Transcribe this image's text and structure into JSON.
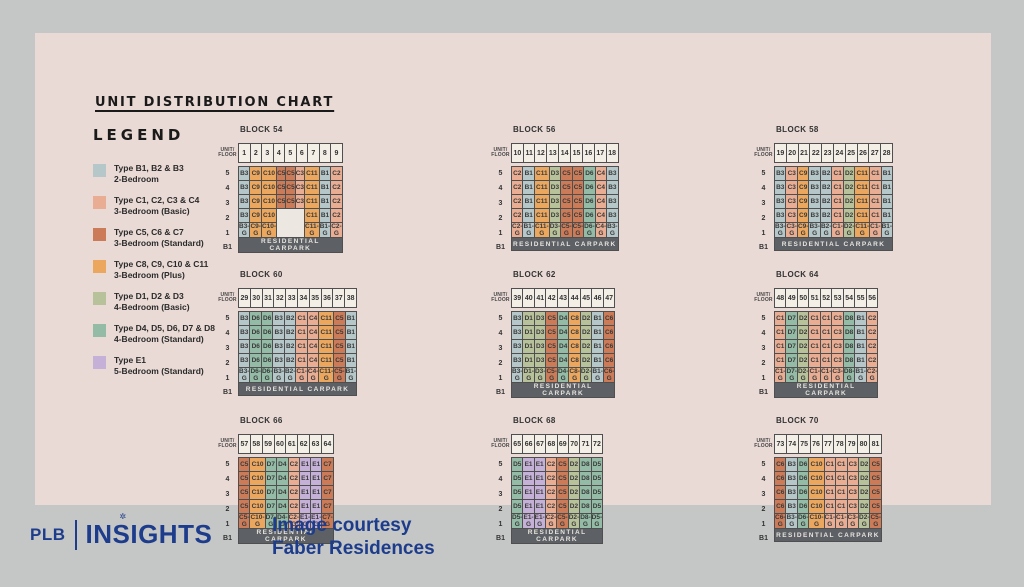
{
  "title": "UNIT DISTRIBUTION CHART",
  "legend": {
    "heading": "LEGEND",
    "items": [
      {
        "line1": "Type B1, B2 & B3",
        "line2": "2-Bedroom",
        "color_key": "type_b"
      },
      {
        "line1": "Type C1, C2, C3 & C4",
        "line2": "3-Bedroom (Basic)",
        "color_key": "type_c_basic"
      },
      {
        "line1": "Type C5, C6 & C7",
        "line2": "3-Bedroom (Standard)",
        "color_key": "type_c_standard"
      },
      {
        "line1": "Type C8, C9, C10 & C11",
        "line2": "3-Bedroom (Plus)",
        "color_key": "type_c_plus"
      },
      {
        "line1": "Type D1, D2 & D3",
        "line2": "4-Bedroom (Basic)",
        "color_key": "type_d_basic"
      },
      {
        "line1": "Type D4, D5, D6, D7 & D8",
        "line2": "4-Bedroom (Standard)",
        "color_key": "type_d_standard"
      },
      {
        "line1": "Type E1",
        "line2": "5-Bedroom (Standard)",
        "color_key": "type_e"
      }
    ]
  },
  "colors": {
    "type_b": "#b6c7ca",
    "type_c_basic": "#e8ad93",
    "type_c_standard": "#cc7b58",
    "type_c_plus": "#eca75f",
    "type_d_basic": "#b8c29a",
    "type_d_standard": "#93bba5",
    "type_e": "#c5b1d7",
    "panel_bg": "#e9dad5",
    "page_bg": "#c5c6c6",
    "stack_header_bg": "#f3eee6",
    "carpark_bg": "#5d6166",
    "brand_navy": "#1d3d8c"
  },
  "labels": {
    "unit_floor_line1": "UNIT/",
    "unit_floor_line2": "FLOOR",
    "carpark": "RESIDENTIAL CARPARK",
    "basement": "B1"
  },
  "footer": {
    "logo_plb": "PLB",
    "logo_insights": "INSIGHTS",
    "credit_line1": "Image courtesy",
    "credit_line2": "Faber Residences"
  },
  "chart_data": {
    "type": "table",
    "title": "UNIT DISTRIBUTION CHART",
    "floors": [
      "5",
      "4",
      "3",
      "2",
      "1"
    ],
    "basement_row_label": "B1",
    "carpark_label": "RESIDENTIAL CARPARK",
    "unit_type_groups": {
      "B1-B3": "2-Bedroom",
      "C1-C4": "3-Bedroom (Basic)",
      "C5-C7": "3-Bedroom (Standard)",
      "C8-C11": "3-Bedroom (Plus)",
      "D1-D3": "4-Bedroom (Basic)",
      "D4-D8": "4-Bedroom (Standard)",
      "E1": "5-Bedroom (Standard)"
    },
    "blocks": [
      {
        "name": "BLOCK 54",
        "stacks": [
          "1",
          "2",
          "3",
          "4",
          "5",
          "6",
          "7",
          "8",
          "9"
        ],
        "rows": [
          {
            "floor": "5",
            "cells": [
              "B3",
              "C9",
              "C10",
              "C5",
              "C5",
              "C3",
              "C11",
              "B1",
              "C2"
            ]
          },
          {
            "floor": "4",
            "cells": [
              "B3",
              "C9",
              "C10",
              "C5",
              "C5",
              "C3",
              "C11",
              "B1",
              "C2"
            ]
          },
          {
            "floor": "3",
            "cells": [
              "B3",
              "C9",
              "C10",
              "C5",
              "C5",
              "C3",
              "C11",
              "B1",
              "C2"
            ]
          },
          {
            "floor": "2",
            "cells": [
              "B3",
              "C9",
              "C10",
              null,
              null,
              null,
              "C11",
              "B1",
              "C2"
            ]
          },
          {
            "floor": "1",
            "cells": [
              "B3-G",
              "C9-G",
              "C10-G",
              null,
              null,
              null,
              "C11-G",
              "B1-G",
              "C2-G"
            ]
          }
        ]
      },
      {
        "name": "BLOCK 56",
        "stacks": [
          "10",
          "11",
          "12",
          "13",
          "14",
          "15",
          "16",
          "17",
          "18"
        ],
        "rows": [
          {
            "floor": "5",
            "cells": [
              "C2",
              "B1",
              "C11",
              "D3",
              "C5",
              "C5",
              "D6",
              "C4",
              "B3"
            ]
          },
          {
            "floor": "4",
            "cells": [
              "C2",
              "B1",
              "C11",
              "D3",
              "C5",
              "C5",
              "D6",
              "C4",
              "B3"
            ]
          },
          {
            "floor": "3",
            "cells": [
              "C2",
              "B1",
              "C11",
              "D3",
              "C5",
              "C5",
              "D6",
              "C4",
              "B3"
            ]
          },
          {
            "floor": "2",
            "cells": [
              "C2",
              "B1",
              "C11",
              "D3",
              "C5",
              "C5",
              "D6",
              "C4",
              "B3"
            ]
          },
          {
            "floor": "1",
            "cells": [
              "C2-G",
              "B1-G",
              "C11-G",
              "D3-G",
              "C5-G",
              "C5-G",
              "D6-G",
              "C4-G",
              "B3-G"
            ]
          }
        ]
      },
      {
        "name": "BLOCK 58",
        "stacks": [
          "19",
          "20",
          "21",
          "22",
          "23",
          "24",
          "25",
          "26",
          "27",
          "28"
        ],
        "rows": [
          {
            "floor": "5",
            "cells": [
              "B3",
              "C3",
              "C9",
              "B3",
              "B2",
              "C1",
              "D2",
              "C11",
              "C1",
              "B1"
            ]
          },
          {
            "floor": "4",
            "cells": [
              "B3",
              "C3",
              "C9",
              "B3",
              "B2",
              "C1",
              "D2",
              "C11",
              "C1",
              "B1"
            ]
          },
          {
            "floor": "3",
            "cells": [
              "B3",
              "C3",
              "C9",
              "B3",
              "B2",
              "C1",
              "D2",
              "C11",
              "C1",
              "B1"
            ]
          },
          {
            "floor": "2",
            "cells": [
              "B3",
              "C3",
              "C9",
              "B3",
              "B2",
              "C1",
              "D2",
              "C11",
              "C1",
              "B1"
            ]
          },
          {
            "floor": "1",
            "cells": [
              "B3-G",
              "C3-G",
              "C9-G",
              "B3-G",
              "B2-G",
              "C1-G",
              "D2-G",
              "C11-G",
              "C1-G",
              "B1-G"
            ]
          }
        ]
      },
      {
        "name": "BLOCK 60",
        "stacks": [
          "29",
          "30",
          "31",
          "32",
          "33",
          "34",
          "35",
          "36",
          "37",
          "38"
        ],
        "rows": [
          {
            "floor": "5",
            "cells": [
              "B3",
              "D6",
              "D6",
              "B3",
              "B2",
              "C1",
              "C4",
              "C11",
              "C5",
              "B1"
            ]
          },
          {
            "floor": "4",
            "cells": [
              "B3",
              "D6",
              "D6",
              "B3",
              "B2",
              "C1",
              "C4",
              "C11",
              "C5",
              "B1"
            ]
          },
          {
            "floor": "3",
            "cells": [
              "B3",
              "D6",
              "D6",
              "B3",
              "B2",
              "C1",
              "C4",
              "C11",
              "C5",
              "B1"
            ]
          },
          {
            "floor": "2",
            "cells": [
              "B3",
              "D6",
              "D6",
              "B3",
              "B2",
              "C1",
              "C4",
              "C11",
              "C5",
              "B1"
            ]
          },
          {
            "floor": "1",
            "cells": [
              "B3-G",
              "D6-G",
              "D6-G",
              "B3-G",
              "B2-G",
              "C1-G",
              "C4-G",
              "C11-G",
              "C5-G",
              "B1-G"
            ]
          }
        ]
      },
      {
        "name": "BLOCK 62",
        "stacks": [
          "39",
          "40",
          "41",
          "42",
          "43",
          "44",
          "45",
          "46",
          "47"
        ],
        "rows": [
          {
            "floor": "5",
            "cells": [
              "B3",
              "D1",
              "D3",
              "C5",
              "D4",
              "C8",
              "D2",
              "B1",
              "C6"
            ]
          },
          {
            "floor": "4",
            "cells": [
              "B3",
              "D1",
              "D3",
              "C5",
              "D4",
              "C8",
              "D2",
              "B1",
              "C6"
            ]
          },
          {
            "floor": "3",
            "cells": [
              "B3",
              "D1",
              "D3",
              "C5",
              "D4",
              "C8",
              "D2",
              "B1",
              "C6"
            ]
          },
          {
            "floor": "2",
            "cells": [
              "B3",
              "D1",
              "D3",
              "C5",
              "D4",
              "C8",
              "D2",
              "B1",
              "C6"
            ]
          },
          {
            "floor": "1",
            "cells": [
              "B3-G",
              "D1-G",
              "D3-G",
              "C5-G",
              "D4-G",
              "C8-G",
              "D2-G",
              "B1-G",
              "C6-G"
            ]
          }
        ]
      },
      {
        "name": "BLOCK 64",
        "stacks": [
          "48",
          "49",
          "50",
          "51",
          "52",
          "53",
          "54",
          "55",
          "56"
        ],
        "rows": [
          {
            "floor": "5",
            "cells": [
              "C1",
              "D7",
              "D2",
              "C1",
              "C1",
              "C3",
              "D8",
              "B1",
              "C2"
            ]
          },
          {
            "floor": "4",
            "cells": [
              "C1",
              "D7",
              "D2",
              "C1",
              "C1",
              "C3",
              "D8",
              "B1",
              "C2"
            ]
          },
          {
            "floor": "3",
            "cells": [
              "C1",
              "D7",
              "D2",
              "C1",
              "C1",
              "C3",
              "D8",
              "B1",
              "C2"
            ]
          },
          {
            "floor": "2",
            "cells": [
              "C1",
              "D7",
              "D2",
              "C1",
              "C1",
              "C3",
              "D8",
              "B1",
              "C2"
            ]
          },
          {
            "floor": "1",
            "cells": [
              "C1-G",
              "D7-G",
              "D2-G",
              "C1-G",
              "C1-G",
              "C3-G",
              "D8-G",
              "B1-G",
              "C2-G"
            ]
          }
        ]
      },
      {
        "name": "BLOCK 66",
        "stacks": [
          "57",
          "58",
          "59",
          "60",
          "61",
          "62",
          "63",
          "64"
        ],
        "rows": [
          {
            "floor": "5",
            "cells": [
              "C5",
              "C10",
              "D7",
              "D4",
              "C2",
              "E1",
              "E1",
              "C7"
            ]
          },
          {
            "floor": "4",
            "cells": [
              "C5",
              "C10",
              "D7",
              "D4",
              "C2",
              "E1",
              "E1",
              "C7"
            ]
          },
          {
            "floor": "3",
            "cells": [
              "C5",
              "C10",
              "D7",
              "D4",
              "C2",
              "E1",
              "E1",
              "C7"
            ]
          },
          {
            "floor": "2",
            "cells": [
              "C5",
              "C10",
              "D7",
              "D4",
              "C2",
              "E1",
              "E1",
              "C7"
            ]
          },
          {
            "floor": "1",
            "cells": [
              "C5-G",
              "C10-G",
              "D7-G",
              "D4-G",
              "C2-G",
              "E1-G",
              "E1-G",
              "C7-G"
            ]
          }
        ]
      },
      {
        "name": "BLOCK 68",
        "stacks": [
          "65",
          "66",
          "67",
          "68",
          "69",
          "70",
          "71",
          "72"
        ],
        "rows": [
          {
            "floor": "5",
            "cells": [
              "D5",
              "E1",
              "E1",
              "C2",
              "C5",
              "D2",
              "D8",
              "D5"
            ]
          },
          {
            "floor": "4",
            "cells": [
              "D5",
              "E1",
              "E1",
              "C2",
              "C5",
              "D2",
              "D8",
              "D5"
            ]
          },
          {
            "floor": "3",
            "cells": [
              "D5",
              "E1",
              "E1",
              "C2",
              "C5",
              "D2",
              "D8",
              "D5"
            ]
          },
          {
            "floor": "2",
            "cells": [
              "D5",
              "E1",
              "E1",
              "C2",
              "C5",
              "D2",
              "D8",
              "D5"
            ]
          },
          {
            "floor": "1",
            "cells": [
              "D5-G",
              "E1-G",
              "E1-G",
              "C2-G",
              "C5-G",
              "D2-G",
              "D8-G",
              "D5-G"
            ]
          }
        ]
      },
      {
        "name": "BLOCK 70",
        "stacks": [
          "73",
          "74",
          "75",
          "76",
          "77",
          "78",
          "79",
          "80",
          "81"
        ],
        "rows": [
          {
            "floor": "5",
            "cells": [
              "C6",
              "B3",
              "D6",
              "C10",
              "C1",
              "C1",
              "C3",
              "D2",
              "C5"
            ]
          },
          {
            "floor": "4",
            "cells": [
              "C6",
              "B3",
              "D6",
              "C10",
              "C1",
              "C1",
              "C3",
              "D2",
              "C5"
            ]
          },
          {
            "floor": "3",
            "cells": [
              "C6",
              "B3",
              "D6",
              "C10",
              "C1",
              "C1",
              "C3",
              "D2",
              "C5"
            ]
          },
          {
            "floor": "2",
            "cells": [
              "C6",
              "B3",
              "D6",
              "C10",
              "C1",
              "C1",
              "C3",
              "D2",
              "C5"
            ]
          },
          {
            "floor": "1",
            "cells": [
              "C6-G",
              "B3-G",
              "D6-G",
              "C10-G",
              "C1-G",
              "C1-G",
              "C3-G",
              "D2-G",
              "C5-G"
            ]
          }
        ]
      }
    ]
  }
}
